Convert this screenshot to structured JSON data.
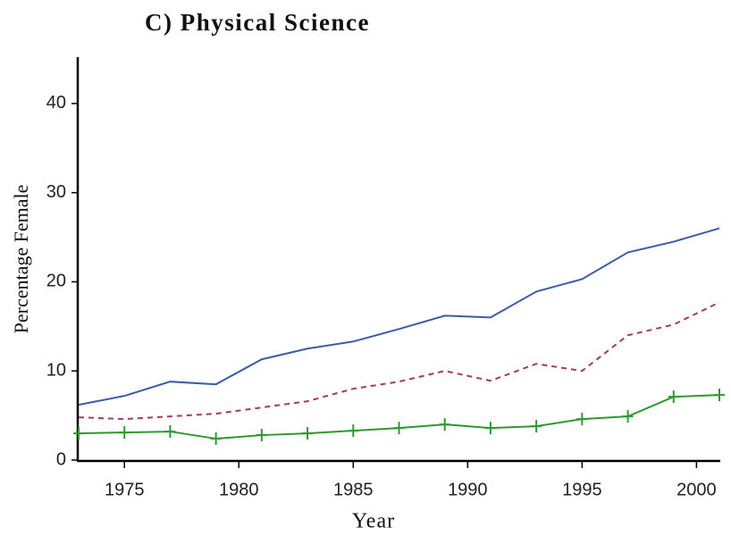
{
  "chart_data": {
    "type": "line",
    "title": "C) Physical Science",
    "xlabel": "Year",
    "ylabel": "Percentage Female",
    "x": [
      1973,
      1975,
      1977,
      1979,
      1981,
      1983,
      1985,
      1987,
      1989,
      1991,
      1993,
      1995,
      1997,
      1999,
      2001
    ],
    "series": [
      {
        "color": "#3b5ca6",
        "linestyle": "solid",
        "marker": "none",
        "values": [
          6.2,
          7.2,
          8.8,
          8.5,
          11.3,
          12.5,
          13.3,
          14.7,
          16.2,
          16.0,
          18.9,
          20.3,
          23.3,
          24.5,
          26.0
        ]
      },
      {
        "color": "#a33a60",
        "linestyle": "dashed",
        "marker": "none",
        "values": [
          4.8,
          4.6,
          4.9,
          5.2,
          5.9,
          6.6,
          8.0,
          8.8,
          10.0,
          8.9,
          10.8,
          10.0,
          14.0,
          15.2,
          17.7
        ]
      },
      {
        "color": "#2e9a2e",
        "linestyle": "solid",
        "marker": "plus",
        "values": [
          3.0,
          3.1,
          3.2,
          2.4,
          2.8,
          3.0,
          3.3,
          3.6,
          4.0,
          3.6,
          3.8,
          4.6,
          4.9,
          7.1,
          7.3
        ]
      }
    ],
    "xlim": [
      1973,
      2001
    ],
    "xticks": [
      1975,
      1980,
      1985,
      1990,
      1995,
      2000
    ],
    "ylim": [
      0,
      45
    ],
    "yticks": [
      0,
      10,
      20,
      30,
      40
    ],
    "grid": false
  }
}
